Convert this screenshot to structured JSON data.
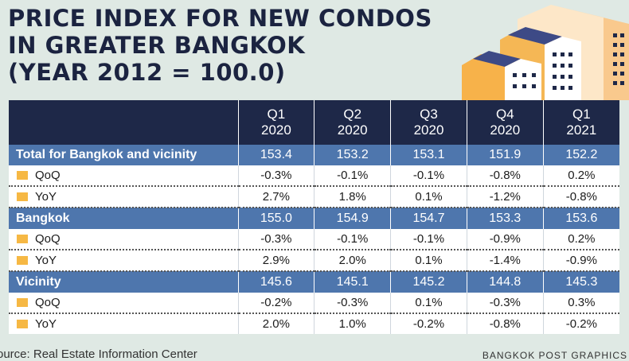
{
  "title_lines": [
    "PRICE INDEX FOR NEW CONDOS",
    "IN GREATER BANGKOK",
    "(YEAR 2012 = 100.0)"
  ],
  "colors": {
    "header_bg": "#1e2848",
    "group_bg": "#4e76ad",
    "negative": "#e0592a",
    "marker": "#f6b844",
    "background": "#dfe9e4"
  },
  "chart_data": {
    "type": "table",
    "title": "PRICE INDEX FOR NEW CONDOS IN GREATER BANGKOK (YEAR 2012 = 100.0)",
    "columns": [
      {
        "q": "Q1",
        "year": "2020"
      },
      {
        "q": "Q2",
        "year": "2020"
      },
      {
        "q": "Q3",
        "year": "2020"
      },
      {
        "q": "Q4",
        "year": "2020"
      },
      {
        "q": "Q1",
        "year": "2021"
      }
    ],
    "groups": [
      {
        "name": "Total for Bangkok and vicinity",
        "index": [
          "153.4",
          "153.2",
          "153.1",
          "151.9",
          "152.2"
        ],
        "qoq": [
          "-0.3%",
          "-0.1%",
          "-0.1%",
          "-0.8%",
          "0.2%"
        ],
        "yoy": [
          "2.7%",
          "1.8%",
          "0.1%",
          "-1.2%",
          "-0.8%"
        ]
      },
      {
        "name": "Bangkok",
        "index": [
          "155.0",
          "154.9",
          "154.7",
          "153.3",
          "153.6"
        ],
        "qoq": [
          "-0.3%",
          "-0.1%",
          "-0.1%",
          "-0.9%",
          "0.2%"
        ],
        "yoy": [
          "2.9%",
          "2.0%",
          "0.1%",
          "-1.4%",
          "-0.9%"
        ]
      },
      {
        "name": "Vicinity",
        "index": [
          "145.6",
          "145.1",
          "145.2",
          "144.8",
          "145.3"
        ],
        "qoq": [
          "-0.2%",
          "-0.3%",
          "0.1%",
          "-0.3%",
          "0.3%"
        ],
        "yoy": [
          "2.0%",
          "1.0%",
          "-0.2%",
          "-0.8%",
          "-0.2%"
        ]
      }
    ],
    "row_labels": {
      "qoq": "QoQ",
      "yoy": "YoY"
    }
  },
  "footer": {
    "source": "ource: Real Estate Information Center",
    "credit": "BANGKOK POST GRAPHICS"
  },
  "icons": {
    "illustration": "buildings-illustration",
    "marker": "square-marker-icon"
  }
}
